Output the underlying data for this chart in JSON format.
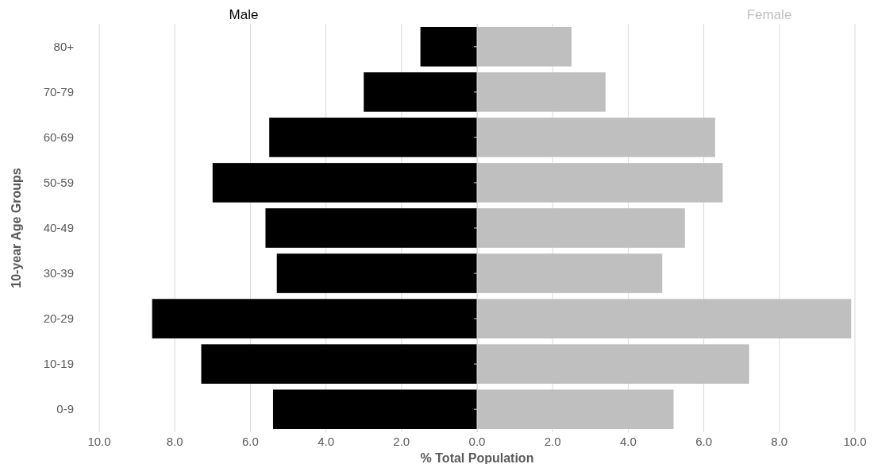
{
  "chart_data": {
    "type": "bar",
    "orientation": "horizontal",
    "xlabel": "% Total Population",
    "ylabel": "10-year Age Groups",
    "categories": [
      "80+",
      "70-79",
      "60-69",
      "50-59",
      "40-49",
      "30-39",
      "20-29",
      "10-19",
      "0-9"
    ],
    "series": [
      {
        "name": "Male",
        "color": "#000000",
        "values": [
          -1.5,
          -3.0,
          -5.5,
          -7.0,
          -5.6,
          -5.3,
          -8.6,
          -7.3,
          -5.4
        ]
      },
      {
        "name": "Female",
        "color": "#bfbfbf",
        "values": [
          2.5,
          3.4,
          6.3,
          6.5,
          5.5,
          4.9,
          9.9,
          7.2,
          5.2
        ]
      }
    ],
    "xlim": [
      -10,
      10
    ],
    "xticks": [
      {
        "value": -10,
        "label": "10.0"
      },
      {
        "value": -8,
        "label": "8.0"
      },
      {
        "value": -6,
        "label": "6.0"
      },
      {
        "value": -4,
        "label": "4.0"
      },
      {
        "value": -2,
        "label": "2.0"
      },
      {
        "value": 0,
        "label": "0.0"
      },
      {
        "value": 2,
        "label": "2.0"
      },
      {
        "value": 4,
        "label": "4.0"
      },
      {
        "value": 6,
        "label": "6.0"
      },
      {
        "value": 8,
        "label": "8.0"
      },
      {
        "value": 10,
        "label": "10.0"
      }
    ],
    "grid": "x",
    "stacked": true
  }
}
